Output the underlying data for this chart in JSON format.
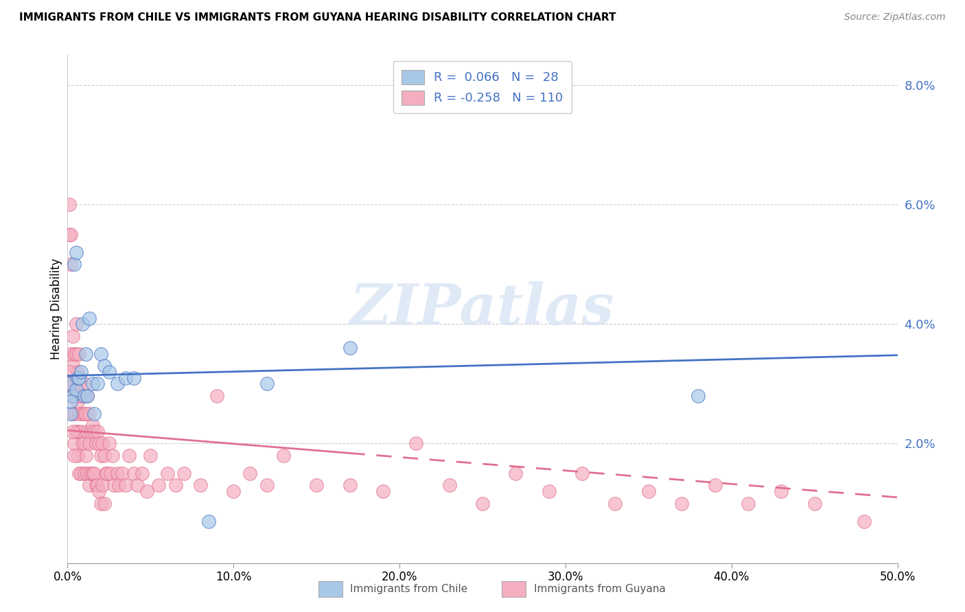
{
  "title": "IMMIGRANTS FROM CHILE VS IMMIGRANTS FROM GUYANA HEARING DISABILITY CORRELATION CHART",
  "source": "Source: ZipAtlas.com",
  "ylabel": "Hearing Disability",
  "y_ticks": [
    0.0,
    0.02,
    0.04,
    0.06,
    0.08
  ],
  "y_tick_labels": [
    "",
    "2.0%",
    "4.0%",
    "6.0%",
    "8.0%"
  ],
  "x_ticks": [
    0.0,
    0.1,
    0.2,
    0.3,
    0.4,
    0.5
  ],
  "x_tick_labels": [
    "0.0%",
    "10.0%",
    "20.0%",
    "30.0%",
    "40.0%",
    "50.0%"
  ],
  "xlim": [
    0.0,
    0.5
  ],
  "ylim": [
    0.0,
    0.085
  ],
  "chile_R": 0.066,
  "chile_N": 28,
  "guyana_R": -0.258,
  "guyana_N": 110,
  "chile_color": "#a8c8e8",
  "guyana_color": "#f4aec0",
  "chile_line_color": "#4472c4",
  "guyana_line_color": "#e07090",
  "watermark": "ZIPatlas",
  "chile_x": [
    0.001,
    0.002,
    0.003,
    0.004,
    0.005,
    0.005,
    0.006,
    0.007,
    0.008,
    0.009,
    0.01,
    0.011,
    0.012,
    0.013,
    0.015,
    0.016,
    0.018,
    0.02,
    0.022,
    0.025,
    0.03,
    0.035,
    0.04,
    0.085,
    0.12,
    0.17,
    0.38,
    0.002
  ],
  "chile_y": [
    0.03,
    0.025,
    0.028,
    0.05,
    0.052,
    0.029,
    0.031,
    0.031,
    0.032,
    0.04,
    0.028,
    0.035,
    0.028,
    0.041,
    0.03,
    0.025,
    0.03,
    0.035,
    0.033,
    0.032,
    0.03,
    0.031,
    0.031,
    0.007,
    0.03,
    0.036,
    0.028,
    0.027
  ],
  "guyana_x": [
    0.001,
    0.001,
    0.001,
    0.001,
    0.002,
    0.002,
    0.002,
    0.002,
    0.003,
    0.003,
    0.003,
    0.003,
    0.004,
    0.004,
    0.004,
    0.004,
    0.005,
    0.005,
    0.005,
    0.005,
    0.006,
    0.006,
    0.006,
    0.006,
    0.007,
    0.007,
    0.007,
    0.007,
    0.008,
    0.008,
    0.008,
    0.009,
    0.009,
    0.01,
    0.01,
    0.01,
    0.01,
    0.011,
    0.011,
    0.012,
    0.012,
    0.012,
    0.013,
    0.013,
    0.013,
    0.014,
    0.014,
    0.015,
    0.015,
    0.016,
    0.016,
    0.017,
    0.017,
    0.018,
    0.018,
    0.019,
    0.019,
    0.02,
    0.02,
    0.021,
    0.021,
    0.022,
    0.022,
    0.023,
    0.024,
    0.025,
    0.026,
    0.027,
    0.028,
    0.03,
    0.031,
    0.033,
    0.035,
    0.037,
    0.04,
    0.042,
    0.045,
    0.048,
    0.05,
    0.055,
    0.06,
    0.065,
    0.07,
    0.08,
    0.09,
    0.1,
    0.11,
    0.12,
    0.13,
    0.15,
    0.17,
    0.19,
    0.21,
    0.23,
    0.25,
    0.27,
    0.29,
    0.31,
    0.33,
    0.35,
    0.37,
    0.39,
    0.41,
    0.43,
    0.45,
    0.48,
    0.001,
    0.002,
    0.003,
    0.004
  ],
  "guyana_y": [
    0.06,
    0.055,
    0.03,
    0.028,
    0.055,
    0.05,
    0.035,
    0.03,
    0.038,
    0.033,
    0.028,
    0.025,
    0.035,
    0.03,
    0.025,
    0.02,
    0.04,
    0.035,
    0.028,
    0.022,
    0.032,
    0.027,
    0.022,
    0.018,
    0.035,
    0.03,
    0.025,
    0.015,
    0.028,
    0.022,
    0.015,
    0.025,
    0.02,
    0.03,
    0.025,
    0.02,
    0.015,
    0.025,
    0.018,
    0.028,
    0.022,
    0.015,
    0.025,
    0.02,
    0.013,
    0.022,
    0.015,
    0.023,
    0.015,
    0.022,
    0.015,
    0.02,
    0.013,
    0.022,
    0.013,
    0.02,
    0.012,
    0.018,
    0.01,
    0.02,
    0.013,
    0.018,
    0.01,
    0.015,
    0.015,
    0.02,
    0.015,
    0.018,
    0.013,
    0.015,
    0.013,
    0.015,
    0.013,
    0.018,
    0.015,
    0.013,
    0.015,
    0.012,
    0.018,
    0.013,
    0.015,
    0.013,
    0.015,
    0.013,
    0.028,
    0.012,
    0.015,
    0.013,
    0.018,
    0.013,
    0.013,
    0.012,
    0.02,
    0.013,
    0.01,
    0.015,
    0.012,
    0.015,
    0.01,
    0.012,
    0.01,
    0.013,
    0.01,
    0.012,
    0.01,
    0.007,
    0.032,
    0.028,
    0.022,
    0.018
  ]
}
